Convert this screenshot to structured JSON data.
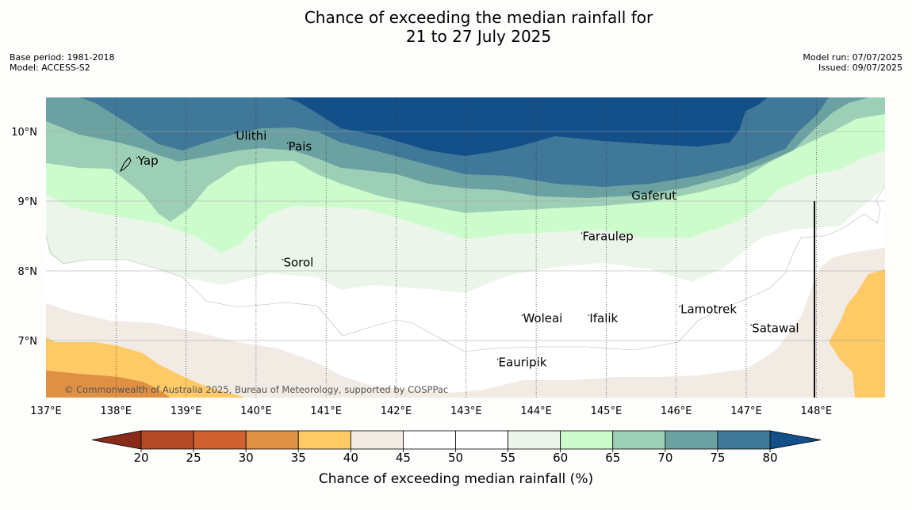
{
  "title": {
    "line1": "Chance of exceeding the median rainfall for",
    "line2": "21 to 27 July 2025"
  },
  "meta": {
    "base_period": "Base period: 1981-2018",
    "model": "Model: ACCESS-S2",
    "model_run": "Model run: 07/07/2025",
    "issued": "Issued: 09/07/2025"
  },
  "copyright": "© Commonwealth of Australia 2025, Bureau of Meteorology, supported by COSPPac",
  "map": {
    "lon_ticks": [
      "137°E",
      "138°E",
      "139°E",
      "140°E",
      "141°E",
      "142°E",
      "143°E",
      "144°E",
      "145°E",
      "146°E",
      "147°E",
      "148°E"
    ],
    "lat_ticks": [
      "10°N",
      "9°N",
      "8°N",
      "7°N"
    ],
    "places": [
      {
        "name": "Yap",
        "lon": 138.3,
        "lat": 9.52
      },
      {
        "name": "Ulithi",
        "lon": 139.7,
        "lat": 9.88
      },
      {
        "name": "Pais",
        "lon": 140.45,
        "lat": 9.73
      },
      {
        "name": "Gaferut",
        "lon": 145.35,
        "lat": 9.02
      },
      {
        "name": "Faraulep",
        "lon": 144.65,
        "lat": 8.44
      },
      {
        "name": "Sorol",
        "lon": 140.38,
        "lat": 8.06
      },
      {
        "name": "Woleai",
        "lon": 143.8,
        "lat": 7.26
      },
      {
        "name": "Ifalik",
        "lon": 144.75,
        "lat": 7.26
      },
      {
        "name": "Lamotrek",
        "lon": 146.05,
        "lat": 7.39
      },
      {
        "name": "Satawal",
        "lon": 147.07,
        "lat": 7.12
      },
      {
        "name": "Eauripik",
        "lon": 143.45,
        "lat": 6.63
      }
    ]
  },
  "colorbar": {
    "label": "Chance of exceeding median rainfall (%)",
    "ticks": [
      "20",
      "25",
      "30",
      "35",
      "40",
      "45",
      "50",
      "55",
      "60",
      "65",
      "70",
      "75",
      "80"
    ],
    "colors": {
      "below_20": "#8a2b1a",
      "c20_25": "#b44a26",
      "c25_30": "#cf6230",
      "c30_35": "#e09042",
      "c35_40": "#fdca65",
      "c40_45": "#f1ebe4",
      "c45_50": "#ffffff",
      "c50_55": "#ffffff",
      "c55_60": "#ecf5ea",
      "c60_65": "#ccfccc",
      "c65_70": "#9dcfb7",
      "c70_75": "#6ca1a2",
      "c75_80": "#3f7899",
      "above_80": "#134f88"
    }
  }
}
